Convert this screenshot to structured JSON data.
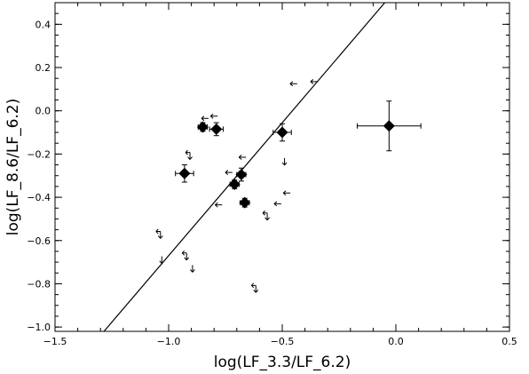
{
  "chart_data": {
    "type": "scatter",
    "title": "",
    "xlabel": "log(LF_3.3/LF_6.2)",
    "ylabel": "log(LF_8.6/LF_6.2)",
    "xlim": [
      -1.5,
      0.5
    ],
    "ylim": [
      -1.02,
      0.5
    ],
    "x_ticks": [
      -1.5,
      -1.0,
      -0.5,
      0.0,
      0.5
    ],
    "x_tick_labels": [
      "−1.5",
      "−1.0",
      "−0.5",
      "0.0",
      "0.5"
    ],
    "y_ticks": [
      -1.0,
      -0.8,
      -0.6,
      -0.4,
      -0.2,
      0.0,
      0.2,
      0.4
    ],
    "y_tick_labels": [
      "−1.0",
      "−0.8",
      "−0.6",
      "−0.4",
      "−0.2",
      "0.0",
      "0.2",
      "0.4"
    ],
    "grid": false,
    "fit_line": {
      "slope": 1.23,
      "intercept": 0.56
    },
    "detections": [
      {
        "x": -0.93,
        "y": -0.29,
        "xerr": 0.04,
        "yerr": 0.04
      },
      {
        "x": -0.85,
        "y": -0.075,
        "xerr": 0.02,
        "yerr": 0.02
      },
      {
        "x": -0.79,
        "y": -0.085,
        "xerr": 0.03,
        "yerr": 0.03
      },
      {
        "x": -0.71,
        "y": -0.34,
        "xerr": 0.02,
        "yerr": 0.02
      },
      {
        "x": -0.68,
        "y": -0.295,
        "xerr": 0.02,
        "yerr": 0.03
      },
      {
        "x": -0.665,
        "y": -0.425,
        "xerr": 0.02,
        "yerr": 0.02
      },
      {
        "x": -0.5,
        "y": -0.1,
        "xerr": 0.04,
        "yerr": 0.04
      },
      {
        "x": -0.03,
        "y": -0.07,
        "xerr": 0.14,
        "yerr": 0.115
      }
    ],
    "upper_limits_x": [
      {
        "x": -0.45,
        "y": 0.125
      },
      {
        "x": -0.36,
        "y": 0.135
      },
      {
        "x": -0.84,
        "y": -0.035
      },
      {
        "x": -0.8,
        "y": -0.025
      },
      {
        "x": -0.675,
        "y": -0.215
      },
      {
        "x": -0.735,
        "y": -0.285
      },
      {
        "x": -0.78,
        "y": -0.435
      },
      {
        "x": -0.52,
        "y": -0.43
      },
      {
        "x": -0.48,
        "y": -0.38
      }
    ],
    "upper_limits_y": [
      {
        "x": -0.49,
        "y": -0.235
      },
      {
        "x": -1.03,
        "y": -0.69
      },
      {
        "x": -0.895,
        "y": -0.73
      }
    ],
    "upper_limits_both": [
      {
        "x": -0.91,
        "y": -0.205
      },
      {
        "x": -0.57,
        "y": -0.485
      },
      {
        "x": -1.04,
        "y": -0.57
      },
      {
        "x": -0.925,
        "y": -0.67
      },
      {
        "x": -0.62,
        "y": -0.82
      }
    ]
  }
}
